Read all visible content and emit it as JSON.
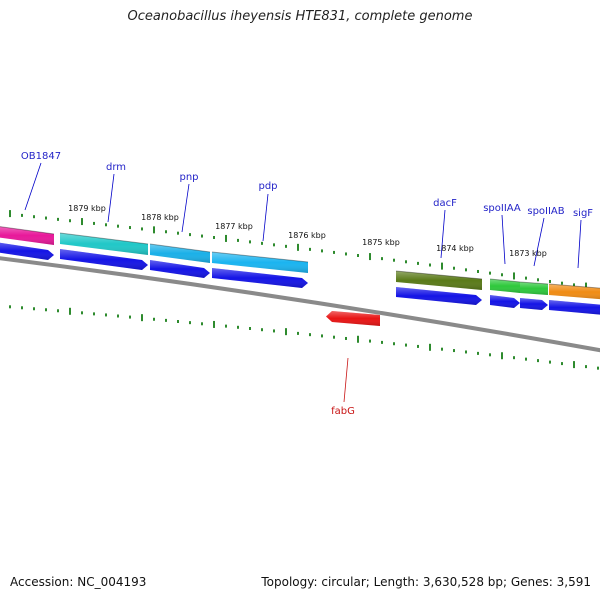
{
  "title": "Oceanobacillus iheyensis HTE831, complete genome",
  "footer": {
    "accession": "Accession: NC_004193",
    "stats": "Topology: circular; Length: 3,630,528 bp; Genes: 3,591"
  },
  "colors": {
    "backbone": "#8a8a8a",
    "tick": "#2e8b2e",
    "label_line": "#0000c8",
    "forward_label": "#2424c8",
    "reverse_label": "#c81414",
    "cds": "#1414e6"
  },
  "kbp_labels": [
    "1879 kbp",
    "1878 kbp",
    "1877 kbp",
    "1876 kbp",
    "1875 kbp",
    "1874 kbp",
    "1873 kbp"
  ],
  "genes": [
    {
      "name": "OB1847",
      "strand": "forward",
      "color": "#e8189a"
    },
    {
      "name": "drm",
      "strand": "forward",
      "color": "#20c8c8"
    },
    {
      "name": "pnp",
      "strand": "forward",
      "color": "#1ab0e8"
    },
    {
      "name": "pdp",
      "strand": "forward",
      "color": "#1ab4f0"
    },
    {
      "name": "dacF",
      "strand": "forward",
      "color": "#5a7a18"
    },
    {
      "name": "spoIIAA",
      "strand": "forward",
      "color": "#2ec83c"
    },
    {
      "name": "spoIIAB",
      "strand": "forward",
      "color": "#2ec83c"
    },
    {
      "name": "sigF",
      "strand": "forward",
      "color": "#f08c14"
    },
    {
      "name": "fabG",
      "strand": "reverse",
      "color": "#e81414"
    }
  ]
}
